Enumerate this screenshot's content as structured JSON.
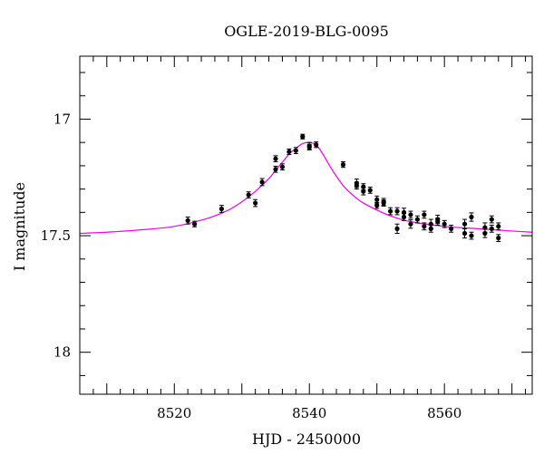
{
  "chart_data": {
    "type": "scatter",
    "title": "OGLE-2019-BLG-0095",
    "xlabel": "HJD - 2450000",
    "ylabel": "I magnitude",
    "xlim": [
      8506,
      8573
    ],
    "ylim": [
      18.18,
      16.73
    ],
    "y_inverted": true,
    "grid": false,
    "x_ticks": [
      8520,
      8540,
      8560
    ],
    "y_ticks": [
      17,
      17.5,
      18
    ],
    "x_minor_step": 2,
    "y_minor_step": 0.1,
    "colors": {
      "points": "#000000",
      "model": "#ee00ee"
    },
    "model": {
      "name": "",
      "x": [
        8506,
        8510,
        8515,
        8520,
        8525,
        8528,
        8530,
        8532,
        8534,
        8535,
        8536,
        8537,
        8538,
        8539,
        8540,
        8541,
        8542,
        8543,
        8544,
        8545,
        8546,
        8547,
        8548,
        8550,
        8552,
        8555,
        8560,
        8565,
        8570,
        8573
      ],
      "y": [
        17.49,
        17.485,
        17.475,
        17.46,
        17.425,
        17.39,
        17.355,
        17.31,
        17.255,
        17.22,
        17.185,
        17.15,
        17.125,
        17.105,
        17.1,
        17.11,
        17.15,
        17.2,
        17.245,
        17.285,
        17.315,
        17.34,
        17.36,
        17.39,
        17.415,
        17.44,
        17.46,
        17.47,
        17.48,
        17.485
      ]
    },
    "series": [
      {
        "name": "",
        "x": [
          8522,
          8523,
          8527,
          8531,
          8532,
          8533,
          8535,
          8535,
          8536,
          8537,
          8538,
          8539,
          8540,
          8540,
          8541,
          8545,
          8547,
          8547,
          8548,
          8548,
          8549,
          8550,
          8550,
          8551,
          8551,
          8552,
          8553,
          8553,
          8554,
          8554,
          8555,
          8555,
          8556,
          8557,
          8557,
          8558,
          8558,
          8559,
          8559,
          8560,
          8561,
          8563,
          8563,
          8564,
          8564,
          8566,
          8566,
          8567,
          8567,
          8568,
          8568
        ],
        "y": [
          17.435,
          17.45,
          17.385,
          17.325,
          17.36,
          17.27,
          17.215,
          17.17,
          17.205,
          17.14,
          17.135,
          17.075,
          17.115,
          17.12,
          17.11,
          17.195,
          17.275,
          17.285,
          17.29,
          17.31,
          17.305,
          17.37,
          17.345,
          17.355,
          17.36,
          17.395,
          17.47,
          17.395,
          17.4,
          17.42,
          17.41,
          17.45,
          17.43,
          17.41,
          17.46,
          17.45,
          17.47,
          17.44,
          17.43,
          17.45,
          17.47,
          17.45,
          17.49,
          17.42,
          17.5,
          17.465,
          17.49,
          17.43,
          17.47,
          17.46,
          17.51
        ],
        "err": [
          0.015,
          0.012,
          0.015,
          0.013,
          0.015,
          0.015,
          0.013,
          0.013,
          0.013,
          0.012,
          0.013,
          0.01,
          0.015,
          0.012,
          0.012,
          0.012,
          0.018,
          0.015,
          0.013,
          0.015,
          0.013,
          0.013,
          0.015,
          0.015,
          0.013,
          0.015,
          0.02,
          0.015,
          0.018,
          0.015,
          0.015,
          0.018,
          0.015,
          0.015,
          0.015,
          0.02,
          0.015,
          0.015,
          0.018,
          0.015,
          0.015,
          0.02,
          0.02,
          0.018,
          0.015,
          0.02,
          0.018,
          0.015,
          0.015,
          0.015,
          0.015
        ]
      }
    ]
  }
}
